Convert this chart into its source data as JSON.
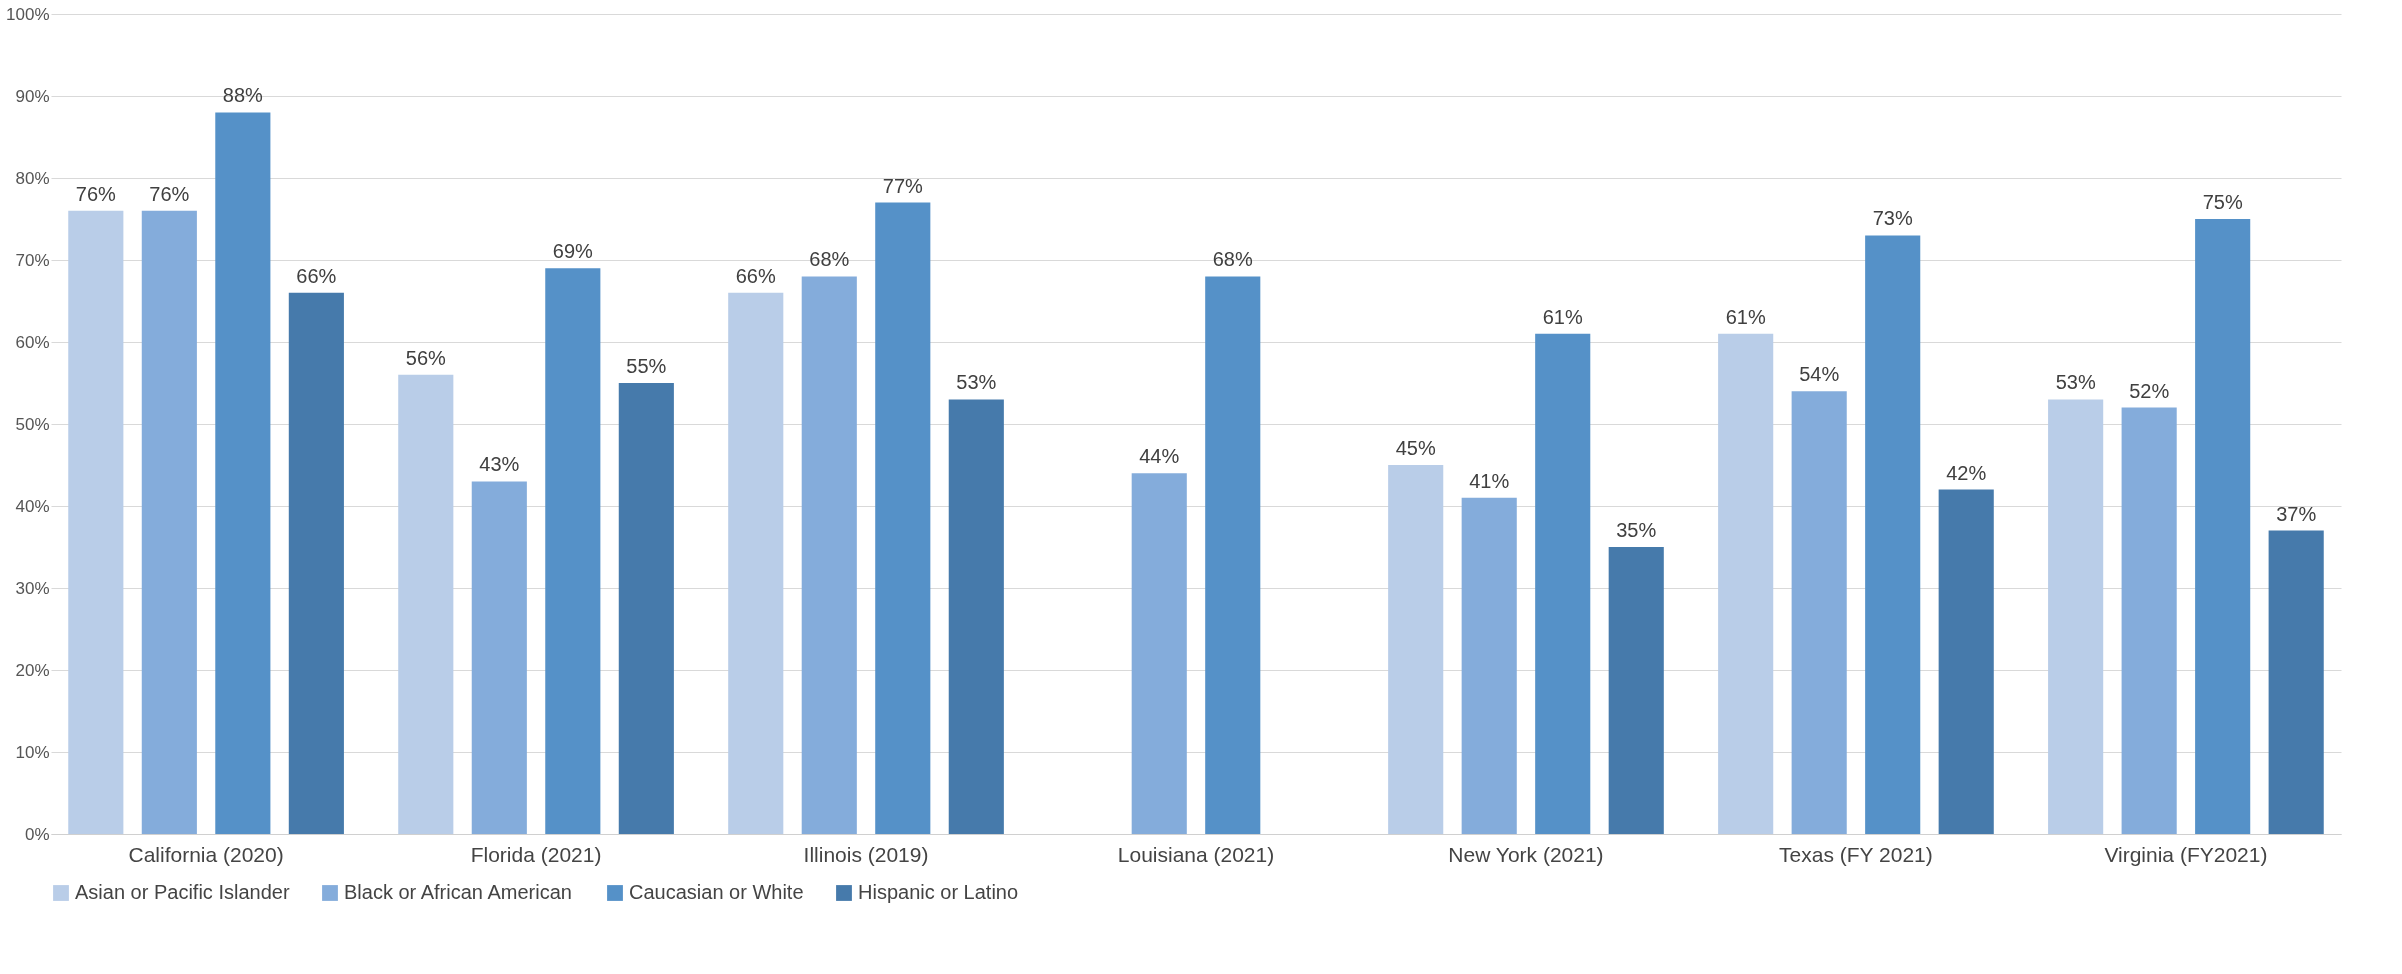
{
  "chart_data": {
    "type": "bar",
    "categories": [
      "California (2020)",
      "Florida (2021)",
      "Illinois (2019)",
      "Louisiana (2021)",
      "New York (2021)",
      "Texas (FY 2021)",
      "Virginia (FY2021)"
    ],
    "series": [
      {
        "name": "Asian or Pacific Islander",
        "color": "#b9cde8",
        "values": [
          76,
          56,
          66,
          null,
          45,
          61,
          53
        ],
        "value_labels": [
          "76%",
          "56%",
          "66%",
          null,
          "45%",
          "61%",
          "53%"
        ]
      },
      {
        "name": "Black or African American",
        "color": "#84acdb",
        "values": [
          76,
          43,
          68,
          44,
          41,
          54,
          52
        ],
        "value_labels": [
          "76%",
          "43%",
          "68%",
          "44%",
          "41%",
          "54%",
          "52%"
        ]
      },
      {
        "name": "Caucasian or White",
        "color": "#5591c8",
        "values": [
          88,
          69,
          77,
          68,
          61,
          73,
          75
        ],
        "value_labels": [
          "88%",
          "69%",
          "77%",
          "68%",
          "61%",
          "73%",
          "75%"
        ]
      },
      {
        "name": "Hispanic or Latino",
        "color": "#467aab",
        "values": [
          66,
          55,
          53,
          null,
          35,
          42,
          37
        ],
        "value_labels": [
          "66%",
          "55%",
          "53%",
          null,
          "35%",
          "42%",
          "37%"
        ]
      }
    ],
    "ylim": [
      0,
      100
    ],
    "yticks": [
      {
        "value": 0,
        "label": "0%"
      },
      {
        "value": 10,
        "label": "10%"
      },
      {
        "value": 20,
        "label": "20%"
      },
      {
        "value": 30,
        "label": "30%"
      },
      {
        "value": 40,
        "label": "40%"
      },
      {
        "value": 50,
        "label": "50%"
      },
      {
        "value": 60,
        "label": "60%"
      },
      {
        "value": 70,
        "label": "70%"
      },
      {
        "value": 80,
        "label": "80%"
      },
      {
        "value": 90,
        "label": "90%"
      },
      {
        "value": 100,
        "label": "100%"
      }
    ],
    "grid": "y",
    "legend": "bottom"
  }
}
